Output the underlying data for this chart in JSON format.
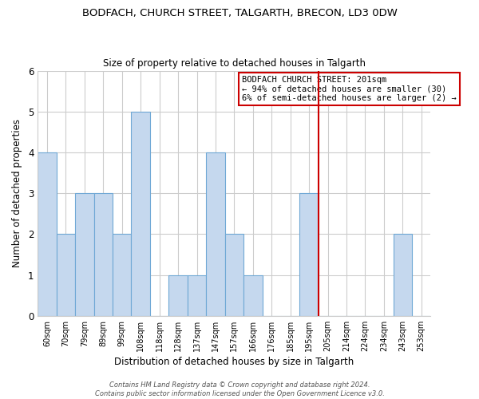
{
  "title": "BODFACH, CHURCH STREET, TALGARTH, BRECON, LD3 0DW",
  "subtitle": "Size of property relative to detached houses in Talgarth",
  "xlabel": "Distribution of detached houses by size in Talgarth",
  "ylabel": "Number of detached properties",
  "categories": [
    "60sqm",
    "70sqm",
    "79sqm",
    "89sqm",
    "99sqm",
    "108sqm",
    "118sqm",
    "128sqm",
    "137sqm",
    "147sqm",
    "157sqm",
    "166sqm",
    "176sqm",
    "185sqm",
    "195sqm",
    "205sqm",
    "214sqm",
    "224sqm",
    "234sqm",
    "243sqm",
    "253sqm"
  ],
  "values": [
    4,
    2,
    3,
    3,
    2,
    5,
    0,
    1,
    1,
    4,
    2,
    1,
    0,
    0,
    3,
    0,
    0,
    0,
    0,
    2,
    0
  ],
  "bar_color": "#c5d8ee",
  "bar_edge_color": "#6fa8d5",
  "highlight_line_index": 15,
  "highlight_color": "#cc0000",
  "ylim": [
    0,
    6
  ],
  "yticks": [
    0,
    1,
    2,
    3,
    4,
    5,
    6
  ],
  "annotation_title": "BODFACH CHURCH STREET: 201sqm",
  "annotation_line1": "← 94% of detached houses are smaller (30)",
  "annotation_line2": "6% of semi-detached houses are larger (2) →",
  "annotation_box_color": "#ffffff",
  "annotation_box_edge": "#cc0000",
  "footer_line1": "Contains HM Land Registry data © Crown copyright and database right 2024.",
  "footer_line2": "Contains public sector information licensed under the Open Government Licence v3.0.",
  "background_color": "#ffffff",
  "grid_color": "#cccccc"
}
